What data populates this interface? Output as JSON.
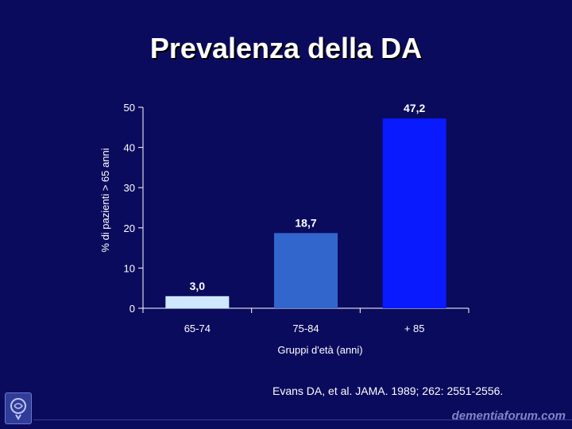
{
  "slide": {
    "title": "Prevalenza della DA",
    "citation": "Evans DA, et al. JAMA. 1989; 262: 2551-2556.",
    "brand": "dementiaforum.com"
  },
  "chart_data": {
    "type": "bar",
    "categories": [
      "65-74",
      "75-84",
      "+ 85"
    ],
    "values": [
      3.0,
      18.7,
      47.2
    ],
    "value_labels": [
      "3,0",
      "18,7",
      "47,2"
    ],
    "bar_colors": [
      "#cfe8ff",
      "#3366cc",
      "#0a1aff"
    ],
    "title": "",
    "xlabel": "Gruppi d'età (anni)",
    "ylabel": "% di pazienti > 65 anni",
    "ylim": [
      0,
      50
    ],
    "yticks": [
      0,
      10,
      20,
      30,
      40,
      50
    ],
    "grid": false,
    "legend": "none"
  }
}
